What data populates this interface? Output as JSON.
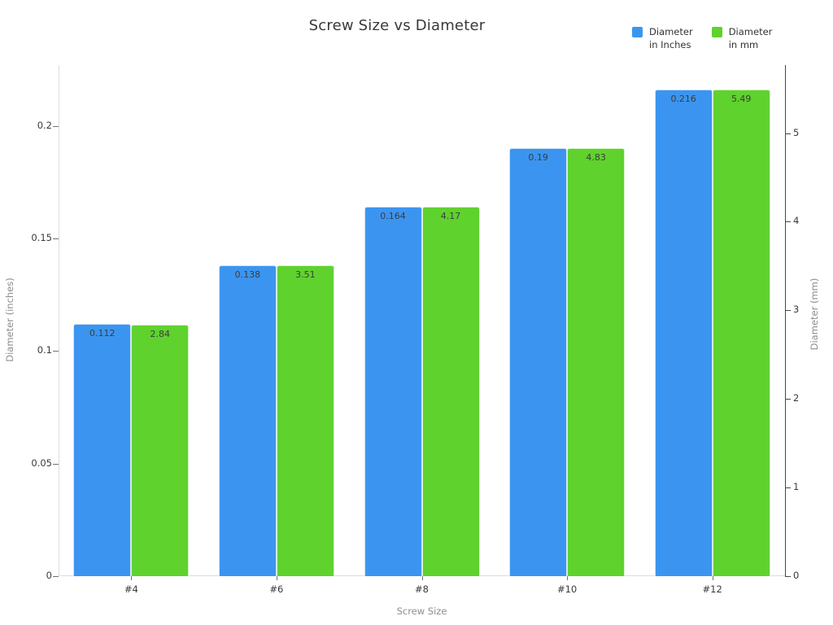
{
  "legend": {
    "items": [
      {
        "line1": "Diameter",
        "line2": "in Inches",
        "color": "#3B95F0"
      },
      {
        "line1": "Diameter",
        "line2": "in mm",
        "color": "#5FD22E"
      }
    ],
    "position": "top-right"
  },
  "chart_data": {
    "type": "bar",
    "title": "Screw Size vs Diameter",
    "categories": [
      "#4",
      "#6",
      "#8",
      "#10",
      "#12"
    ],
    "series": [
      {
        "name": "Diameter in Inches",
        "axis": "left",
        "color": "#3B95F0",
        "values": [
          0.112,
          0.138,
          0.164,
          0.19,
          0.216
        ],
        "labels": [
          "0.112",
          "0.138",
          "0.164",
          "0.19",
          "0.216"
        ]
      },
      {
        "name": "Diameter in mm",
        "axis": "right",
        "color": "#5FD22E",
        "values": [
          2.84,
          3.51,
          4.17,
          4.83,
          5.49
        ],
        "labels": [
          "2.84",
          "3.51",
          "4.17",
          "4.83",
          "5.49"
        ]
      }
    ],
    "xlabel": "Screw Size",
    "ylabel_left": "Diameter (inches)",
    "ylabel_right": "Diameter (mm)",
    "yticks_left": {
      "values": [
        0,
        0.05,
        0.1,
        0.15,
        0.2
      ],
      "labels": [
        "0",
        "0.05",
        "0.1",
        "0.15",
        "0.2"
      ]
    },
    "yticks_right": {
      "values": [
        0,
        1,
        2,
        3,
        4,
        5
      ],
      "labels": [
        "0",
        "1",
        "2",
        "3",
        "4",
        "5"
      ]
    },
    "ylim_left": [
      0,
      0.227
    ],
    "ylim_right": [
      0,
      5.767
    ],
    "grid": false,
    "legend_position": "top-right",
    "bar_value_labels": "inside-top"
  },
  "colors": {
    "background": "#ffffff",
    "title_text": "#393939",
    "tick_text": "#3a3a3a",
    "axis_title_text": "#8e8e8e",
    "axis_line_light": "#dcdcdc",
    "axis_line_dark": "#474747",
    "tick_mark": "#707070",
    "bar_label_text": "#3c3c3c"
  }
}
